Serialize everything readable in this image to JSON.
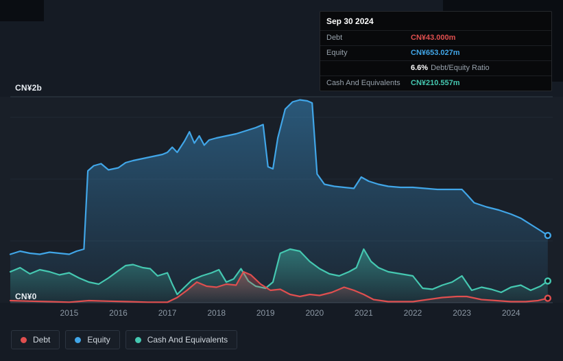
{
  "colors": {
    "background": "#151b24",
    "debt": "#e04f4f",
    "equity": "#41a6e8",
    "cash": "#45c8b1"
  },
  "tooltip": {
    "date": "Sep 30 2024",
    "debt_label": "Debt",
    "debt_value": "CN¥43.000m",
    "equity_label": "Equity",
    "equity_value": "CN¥653.027m",
    "ratio_value": "6.6%",
    "ratio_label": "Debt/Equity Ratio",
    "cash_label": "Cash And Equivalents",
    "cash_value": "CN¥210.557m"
  },
  "chart_data": {
    "type": "area",
    "x_unit": "year",
    "y_unit": "CN¥ billions",
    "xlim": [
      2013.8,
      2024.85
    ],
    "ylim": [
      0,
      2
    ],
    "y_axis": {
      "top_label": "CN¥2b",
      "bottom_label": "CN¥0"
    },
    "xticks": [
      "2015",
      "2016",
      "2017",
      "2018",
      "2019",
      "2020",
      "2021",
      "2022",
      "2023",
      "2024"
    ],
    "xtick_values": [
      2015,
      2016,
      2017,
      2018,
      2019,
      2020,
      2021,
      2022,
      2023,
      2024
    ],
    "grid": {
      "major": [
        0,
        2
      ],
      "minor": [
        0.6,
        1.2,
        1.8
      ]
    },
    "legend_position": "bottom-left",
    "latest": {
      "date": "Sep 30 2024",
      "debt_m": 43.0,
      "equity_m": 653.027,
      "debt_equity_ratio_pct": 6.6,
      "cash_m": 210.557
    },
    "series": [
      {
        "name": "Debt",
        "color": "#e04f4f",
        "zorder": 3,
        "x": [
          2013.8,
          2014.2,
          2014.6,
          2015.0,
          2015.4,
          2015.8,
          2016.2,
          2016.6,
          2017.0,
          2017.2,
          2017.4,
          2017.6,
          2017.8,
          2018.0,
          2018.2,
          2018.4,
          2018.55,
          2018.7,
          2018.9,
          2019.1,
          2019.3,
          2019.5,
          2019.7,
          2019.9,
          2020.1,
          2020.35,
          2020.6,
          2020.8,
          2021.0,
          2021.2,
          2021.5,
          2021.75,
          2022.0,
          2022.3,
          2022.6,
          2022.9,
          2023.1,
          2023.4,
          2023.7,
          2024.0,
          2024.3,
          2024.55,
          2024.75
        ],
        "y": [
          0.02,
          0.015,
          0.01,
          0.005,
          0.02,
          0.015,
          0.01,
          0.005,
          0.004,
          0.05,
          0.12,
          0.2,
          0.16,
          0.15,
          0.18,
          0.17,
          0.3,
          0.27,
          0.18,
          0.12,
          0.13,
          0.08,
          0.06,
          0.08,
          0.07,
          0.1,
          0.15,
          0.12,
          0.08,
          0.03,
          0.01,
          0.01,
          0.01,
          0.03,
          0.05,
          0.06,
          0.06,
          0.03,
          0.02,
          0.01,
          0.01,
          0.02,
          0.043
        ]
      },
      {
        "name": "Equity",
        "color": "#41a6e8",
        "zorder": 1,
        "x": [
          2013.8,
          2014.0,
          2014.2,
          2014.4,
          2014.6,
          2014.8,
          2015.0,
          2015.15,
          2015.3,
          2015.38,
          2015.5,
          2015.65,
          2015.8,
          2016.0,
          2016.15,
          2016.3,
          2016.5,
          2016.7,
          2016.9,
          2017.0,
          2017.1,
          2017.2,
          2017.35,
          2017.45,
          2017.55,
          2017.65,
          2017.75,
          2017.85,
          2018.0,
          2018.2,
          2018.4,
          2018.6,
          2018.8,
          2018.95,
          2019.05,
          2019.15,
          2019.25,
          2019.4,
          2019.55,
          2019.7,
          2019.85,
          2019.95,
          2020.05,
          2020.2,
          2020.4,
          2020.6,
          2020.8,
          2020.95,
          2021.1,
          2021.3,
          2021.5,
          2021.75,
          2022.0,
          2022.25,
          2022.5,
          2022.75,
          2023.0,
          2023.1,
          2023.25,
          2023.5,
          2023.75,
          2024.0,
          2024.2,
          2024.4,
          2024.6,
          2024.75
        ],
        "y": [
          0.47,
          0.5,
          0.48,
          0.47,
          0.49,
          0.48,
          0.47,
          0.5,
          0.52,
          1.28,
          1.33,
          1.35,
          1.29,
          1.31,
          1.36,
          1.38,
          1.4,
          1.42,
          1.44,
          1.46,
          1.51,
          1.46,
          1.57,
          1.66,
          1.55,
          1.62,
          1.53,
          1.58,
          1.6,
          1.62,
          1.64,
          1.67,
          1.7,
          1.73,
          1.32,
          1.3,
          1.6,
          1.88,
          1.95,
          1.97,
          1.96,
          1.94,
          1.25,
          1.15,
          1.13,
          1.12,
          1.11,
          1.22,
          1.18,
          1.15,
          1.13,
          1.12,
          1.12,
          1.11,
          1.1,
          1.1,
          1.1,
          1.05,
          0.97,
          0.93,
          0.9,
          0.86,
          0.82,
          0.76,
          0.7,
          0.653
        ]
      },
      {
        "name": "Cash And Equivalents",
        "color": "#45c8b1",
        "zorder": 2,
        "x": [
          2013.8,
          2014.0,
          2014.2,
          2014.4,
          2014.6,
          2014.8,
          2015.0,
          2015.2,
          2015.4,
          2015.6,
          2015.8,
          2016.0,
          2016.15,
          2016.3,
          2016.5,
          2016.65,
          2016.8,
          2017.0,
          2017.1,
          2017.2,
          2017.35,
          2017.5,
          2017.7,
          2017.9,
          2018.05,
          2018.2,
          2018.35,
          2018.5,
          2018.65,
          2018.8,
          2019.0,
          2019.15,
          2019.3,
          2019.5,
          2019.7,
          2019.9,
          2020.1,
          2020.3,
          2020.5,
          2020.7,
          2020.85,
          2021.0,
          2021.15,
          2021.3,
          2021.5,
          2021.75,
          2022.0,
          2022.2,
          2022.4,
          2022.6,
          2022.8,
          2023.0,
          2023.2,
          2023.4,
          2023.6,
          2023.8,
          2024.0,
          2024.2,
          2024.4,
          2024.6,
          2024.75
        ],
        "y": [
          0.3,
          0.34,
          0.28,
          0.32,
          0.3,
          0.27,
          0.29,
          0.24,
          0.2,
          0.18,
          0.24,
          0.31,
          0.36,
          0.37,
          0.34,
          0.33,
          0.26,
          0.29,
          0.18,
          0.08,
          0.15,
          0.22,
          0.26,
          0.29,
          0.32,
          0.2,
          0.23,
          0.33,
          0.21,
          0.16,
          0.14,
          0.2,
          0.48,
          0.52,
          0.5,
          0.4,
          0.33,
          0.28,
          0.26,
          0.3,
          0.34,
          0.52,
          0.4,
          0.34,
          0.3,
          0.28,
          0.26,
          0.14,
          0.13,
          0.17,
          0.2,
          0.26,
          0.12,
          0.15,
          0.13,
          0.1,
          0.15,
          0.17,
          0.12,
          0.16,
          0.211
        ]
      }
    ]
  }
}
